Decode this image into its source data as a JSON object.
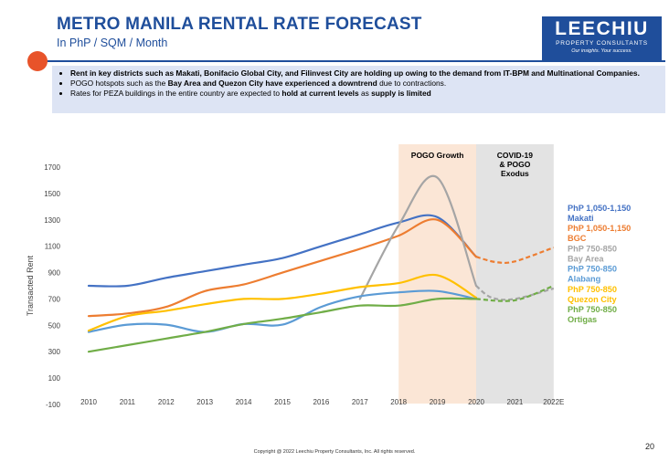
{
  "header": {
    "title": "METRO MANILA RENTAL RATE FORECAST",
    "subtitle": "In PhP / SQM / Month"
  },
  "logo": {
    "name": "LEECHIU",
    "tagline": "PROPERTY CONSULTANTS",
    "slogan": "Our insights. Your success."
  },
  "bullets": [
    {
      "pre": "",
      "bold1": "Rent in key districts such as Makati, Bonifacio Global City, and Filinvest City are holding up owing to the demand from IT-BPM and Multinational Companies.",
      "mid": "",
      "bold2": "",
      "post": ""
    },
    {
      "pre": "POGO hotspots such as the ",
      "bold1": "Bay Area and Quezon City have experienced a downtrend",
      "mid": " due to contractions.",
      "bold2": "",
      "post": ""
    },
    {
      "pre": "Rates for PEZA buildings in the entire country are expected to ",
      "bold1": "hold at current levels",
      "mid": " as ",
      "bold2": "supply is limited",
      "post": ""
    }
  ],
  "chart_data": {
    "type": "line",
    "title": "",
    "xlabel": "",
    "ylabel": "Transacted Rent",
    "categories": [
      "2010",
      "2011",
      "2012",
      "2013",
      "2014",
      "2015",
      "2016",
      "2017",
      "2018",
      "2019",
      "2020",
      "2021",
      "2022E"
    ],
    "y_ticks": [
      -100,
      100,
      300,
      500,
      700,
      900,
      1100,
      1300,
      1500,
      1700
    ],
    "ylim": [
      -100,
      1700
    ],
    "grid": false,
    "shaded_periods": [
      {
        "label": "POGO Growth",
        "from": 8,
        "to": 10,
        "color": "#fbe6d6"
      },
      {
        "label": "COVID-19 & POGO Exodus",
        "label_lines": [
          "COVID-19",
          "& POGO",
          "Exodus"
        ],
        "from": 10,
        "to": 12,
        "color": "#e3e3e3"
      }
    ],
    "series": [
      {
        "name": "Makati",
        "range_label": "PhP 1,050-1,150",
        "color": "#4472c4",
        "values": [
          800,
          800,
          860,
          910,
          960,
          1010,
          1100,
          1190,
          1280,
          1320,
          1020,
          null,
          null
        ],
        "forecast": []
      },
      {
        "name": "BGC",
        "range_label": "PhP 1,050-1,150",
        "color": "#ed7d31",
        "values": [
          570,
          590,
          640,
          760,
          810,
          900,
          990,
          1080,
          1180,
          1300,
          1020,
          null,
          null
        ],
        "forecast": [
          [
            10,
            1020
          ],
          [
            10.5,
            980
          ],
          [
            11,
            985
          ],
          [
            12,
            1090
          ]
        ]
      },
      {
        "name": "Bay Area",
        "range_label": "PhP 750-850",
        "color": "#a5a5a5",
        "values": [
          null,
          null,
          null,
          null,
          null,
          null,
          null,
          700,
          1260,
          1620,
          800,
          null,
          null
        ],
        "forecast": [
          [
            10,
            800
          ],
          [
            10.4,
            710
          ],
          [
            11,
            700
          ],
          [
            12,
            780
          ]
        ]
      },
      {
        "name": "Alabang",
        "range_label": "PhP 750-850",
        "color": "#5b9bd5",
        "values": [
          450,
          505,
          505,
          450,
          510,
          505,
          640,
          720,
          750,
          760,
          700,
          null,
          null
        ],
        "forecast": []
      },
      {
        "name": "Quezon City",
        "range_label": "PhP 750-850",
        "color": "#ffc000",
        "values": [
          460,
          570,
          610,
          660,
          700,
          700,
          740,
          790,
          820,
          880,
          710,
          null,
          null
        ],
        "forecast": []
      },
      {
        "name": "Ortigas",
        "range_label": "PhP 750-850",
        "color": "#70ad47",
        "values": [
          300,
          350,
          400,
          450,
          510,
          550,
          600,
          650,
          650,
          700,
          700,
          null,
          null
        ],
        "forecast": [
          [
            10,
            700
          ],
          [
            11,
            690
          ],
          [
            12,
            800
          ]
        ]
      }
    ]
  },
  "footer": {
    "copyright": "Copyright @ 2022 Leechiu Property Consultants, Inc. All rights reserved.",
    "page_number": "20"
  }
}
